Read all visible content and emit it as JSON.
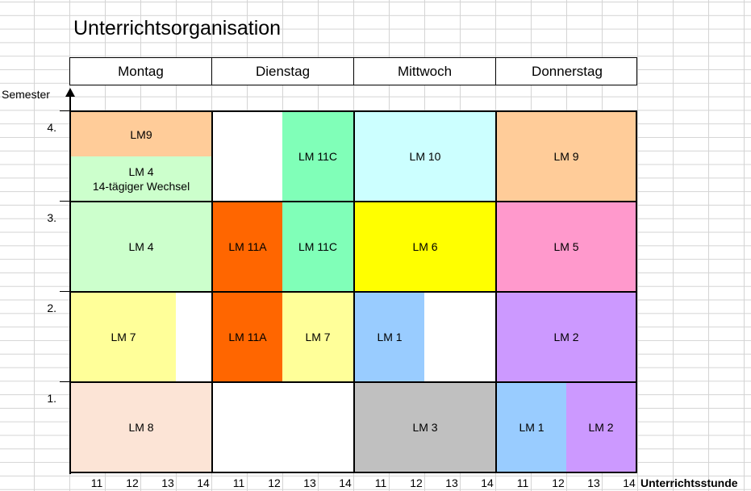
{
  "title": "Unterrichtsorganisation",
  "days": [
    "Montag",
    "Dienstag",
    "Mittwoch",
    "Donnerstag"
  ],
  "y_axis_label": "Semester",
  "semesters": [
    "4.",
    "3.",
    "2.",
    "1."
  ],
  "x_axis_label": "Unterrichtsstunde",
  "hours": [
    "11",
    "12",
    "13",
    "14",
    "11",
    "12",
    "13",
    "14",
    "11",
    "12",
    "13",
    "14",
    "11",
    "12",
    "13",
    "14"
  ],
  "colors": {
    "orange_light": "#ffcc99",
    "green_light": "#ccffcc",
    "green_mint": "#80ffb8",
    "cyan_light": "#ccffff",
    "orange_dark": "#ff6600",
    "yellow": "#ffff00",
    "pink": "#ff99cc",
    "yellow_light": "#ffff99",
    "blue_light": "#99ccff",
    "violet": "#cc99ff",
    "peach": "#fce4d6",
    "gray": "#c0c0c0"
  },
  "cells": {
    "s4_mo_top": "LM9",
    "s4_mo_bottom_line1": "LM 4",
    "s4_mo_bottom_line2": "14-tägiger Wechsel",
    "s4_di": "LM 11C",
    "s4_mi": "LM 10",
    "s4_do": "LM 9",
    "s3_mo": "LM 4",
    "s3_di_a": "LM 11A",
    "s3_di_c": "LM 11C",
    "s3_mi": "LM 6",
    "s3_do": "LM 5",
    "s2_mo": "LM 7",
    "s2_di_a": "LM 11A",
    "s2_di_b": "LM 7",
    "s2_mi": "LM 1",
    "s2_do": "LM 2",
    "s1_mo": "LM 8",
    "s1_mi": "LM 3",
    "s1_do_a": "LM 1",
    "s1_do_b": "LM 2"
  }
}
